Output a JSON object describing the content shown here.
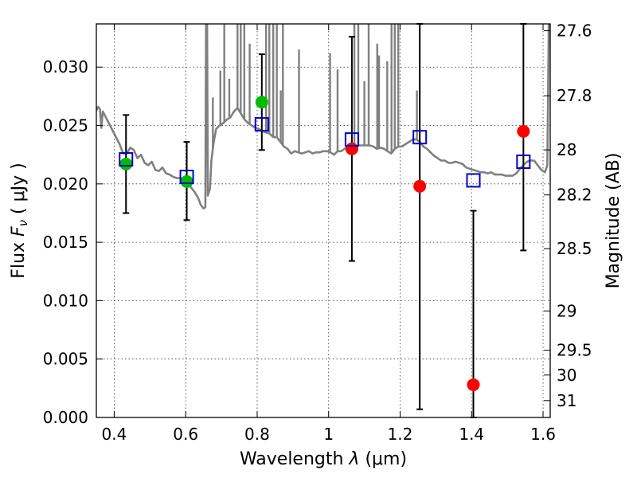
{
  "chart_data": {
    "type": "scatter",
    "title": "",
    "xlabel": {
      "prefix": "Wavelength  ",
      "symbol": "λ",
      "unit": " (μm)"
    },
    "ylabel": {
      "prefix": "Flux  ",
      "symbol": "F",
      "sub": "ν",
      "unit": "  ( μJy )"
    },
    "y2label": "Magnitude (AB)",
    "xlim": [
      0.35,
      1.62
    ],
    "ylim": [
      0.0,
      0.0337
    ],
    "grid": true,
    "x_ticks": [
      {
        "value": 0.4,
        "label": "0.4"
      },
      {
        "value": 0.6,
        "label": "0.6"
      },
      {
        "value": 0.8,
        "label": "0.8"
      },
      {
        "value": 1.0,
        "label": "1"
      },
      {
        "value": 1.2,
        "label": "1.2"
      },
      {
        "value": 1.4,
        "label": "1.4"
      },
      {
        "value": 1.6,
        "label": "1.6"
      }
    ],
    "y_ticks": [
      {
        "value": 0.0,
        "label": "0.000"
      },
      {
        "value": 0.005,
        "label": "0.005"
      },
      {
        "value": 0.01,
        "label": "0.010"
      },
      {
        "value": 0.015,
        "label": "0.015"
      },
      {
        "value": 0.02,
        "label": "0.020"
      },
      {
        "value": 0.025,
        "label": "0.025"
      },
      {
        "value": 0.03,
        "label": "0.030"
      }
    ],
    "y2_ticks": [
      {
        "mag": 27.6,
        "label": "27.6"
      },
      {
        "mag": 27.8,
        "label": "27.8"
      },
      {
        "mag": 28.0,
        "label": "28"
      },
      {
        "mag": 28.2,
        "label": "28.2"
      },
      {
        "mag": 28.5,
        "label": "28.5"
      },
      {
        "mag": 29.0,
        "label": "29"
      },
      {
        "mag": 29.5,
        "label": "29.5"
      },
      {
        "mag": 30.0,
        "label": "30"
      },
      {
        "mag": 31.0,
        "label": "31"
      }
    ],
    "model_spectrum": {
      "color": "#808080",
      "points": [
        [
          0.35,
          0.0263
        ],
        [
          0.355,
          0.0266
        ],
        [
          0.36,
          0.0264
        ],
        [
          0.364,
          0.0248
        ],
        [
          0.368,
          0.0262
        ],
        [
          0.375,
          0.0258
        ],
        [
          0.385,
          0.0252
        ],
        [
          0.395,
          0.0246
        ],
        [
          0.405,
          0.024
        ],
        [
          0.415,
          0.0234
        ],
        [
          0.425,
          0.0226
        ],
        [
          0.435,
          0.0226
        ],
        [
          0.445,
          0.0231
        ],
        [
          0.455,
          0.0229
        ],
        [
          0.465,
          0.0222
        ],
        [
          0.475,
          0.0225
        ],
        [
          0.485,
          0.0218
        ],
        [
          0.495,
          0.0216
        ],
        [
          0.505,
          0.0219
        ],
        [
          0.515,
          0.0212
        ],
        [
          0.525,
          0.0211
        ],
        [
          0.535,
          0.0214
        ],
        [
          0.545,
          0.0209
        ],
        [
          0.555,
          0.0208
        ],
        [
          0.565,
          0.0206
        ],
        [
          0.575,
          0.0205
        ],
        [
          0.585,
          0.0205
        ],
        [
          0.595,
          0.0204
        ],
        [
          0.605,
          0.0201
        ],
        [
          0.615,
          0.0197
        ],
        [
          0.625,
          0.0193
        ],
        [
          0.635,
          0.0188
        ],
        [
          0.642,
          0.0182
        ],
        [
          0.65,
          0.0179
        ],
        [
          0.655,
          0.018
        ],
        [
          0.657,
          0.0337
        ],
        [
          0.66,
          0.0337
        ],
        [
          0.662,
          0.019
        ],
        [
          0.668,
          0.0196
        ],
        [
          0.672,
          0.022
        ],
        [
          0.678,
          0.0235
        ],
        [
          0.685,
          0.0247
        ],
        [
          0.695,
          0.025
        ],
        [
          0.705,
          0.0252
        ],
        [
          0.715,
          0.0255
        ],
        [
          0.725,
          0.0257
        ],
        [
          0.735,
          0.0262
        ],
        [
          0.745,
          0.0265
        ],
        [
          0.755,
          0.026
        ],
        [
          0.765,
          0.0255
        ],
        [
          0.775,
          0.0252
        ],
        [
          0.785,
          0.025
        ],
        [
          0.795,
          0.0248
        ],
        [
          0.805,
          0.0247
        ],
        [
          0.815,
          0.0245
        ],
        [
          0.825,
          0.0244
        ],
        [
          0.835,
          0.0243
        ],
        [
          0.845,
          0.024
        ],
        [
          0.855,
          0.024
        ],
        [
          0.865,
          0.0236
        ],
        [
          0.875,
          0.0232
        ],
        [
          0.885,
          0.023
        ],
        [
          0.895,
          0.0226
        ],
        [
          0.905,
          0.0228
        ],
        [
          0.915,
          0.0227
        ],
        [
          0.925,
          0.0226
        ],
        [
          0.935,
          0.0227
        ],
        [
          0.945,
          0.0228
        ],
        [
          0.955,
          0.0226
        ],
        [
          0.965,
          0.0227
        ],
        [
          0.975,
          0.0227
        ],
        [
          0.985,
          0.0228
        ],
        [
          0.995,
          0.0228
        ],
        [
          1.005,
          0.0227
        ],
        [
          1.015,
          0.0225
        ],
        [
          1.025,
          0.0228
        ],
        [
          1.035,
          0.0228
        ],
        [
          1.045,
          0.023
        ],
        [
          1.055,
          0.0232
        ],
        [
          1.065,
          0.0233
        ],
        [
          1.075,
          0.0232
        ],
        [
          1.085,
          0.0233
        ],
        [
          1.095,
          0.0233
        ],
        [
          1.105,
          0.0233
        ],
        [
          1.115,
          0.0233
        ],
        [
          1.125,
          0.0232
        ],
        [
          1.135,
          0.023
        ],
        [
          1.145,
          0.0231
        ],
        [
          1.155,
          0.023
        ],
        [
          1.165,
          0.0228
        ],
        [
          1.175,
          0.0226
        ],
        [
          1.185,
          0.023
        ],
        [
          1.195,
          0.0232
        ],
        [
          1.205,
          0.0232
        ],
        [
          1.215,
          0.0234
        ],
        [
          1.225,
          0.0236
        ],
        [
          1.235,
          0.0238
        ],
        [
          1.245,
          0.0238
        ],
        [
          1.255,
          0.0236
        ],
        [
          1.265,
          0.0232
        ],
        [
          1.275,
          0.023
        ],
        [
          1.285,
          0.0227
        ],
        [
          1.295,
          0.0224
        ],
        [
          1.305,
          0.0222
        ],
        [
          1.315,
          0.022
        ],
        [
          1.325,
          0.022
        ],
        [
          1.335,
          0.0218
        ],
        [
          1.345,
          0.0218
        ],
        [
          1.355,
          0.0219
        ],
        [
          1.365,
          0.0218
        ],
        [
          1.375,
          0.0217
        ],
        [
          1.385,
          0.0214
        ],
        [
          1.395,
          0.0213
        ],
        [
          1.405,
          0.0212
        ],
        [
          1.415,
          0.0211
        ],
        [
          1.425,
          0.021
        ],
        [
          1.435,
          0.021
        ],
        [
          1.445,
          0.0209
        ],
        [
          1.455,
          0.021
        ],
        [
          1.465,
          0.0208
        ],
        [
          1.475,
          0.0208
        ],
        [
          1.485,
          0.0208
        ],
        [
          1.495,
          0.0207
        ],
        [
          1.505,
          0.0207
        ],
        [
          1.515,
          0.0207
        ],
        [
          1.525,
          0.0209
        ],
        [
          1.535,
          0.0213
        ],
        [
          1.545,
          0.0216
        ],
        [
          1.555,
          0.0219
        ],
        [
          1.565,
          0.022
        ],
        [
          1.575,
          0.022
        ],
        [
          1.585,
          0.0216
        ],
        [
          1.595,
          0.0212
        ],
        [
          1.605,
          0.021
        ],
        [
          1.612,
          0.0216
        ],
        [
          1.616,
          0.0337
        ]
      ],
      "emission_lines": [
        [
          0.676,
          0.0274
        ],
        [
          0.697,
          0.0297
        ],
        [
          0.708,
          0.0337
        ],
        [
          0.722,
          0.029
        ],
        [
          0.745,
          0.0337
        ],
        [
          0.754,
          0.0337
        ],
        [
          0.764,
          0.0337
        ],
        [
          0.779,
          0.032
        ],
        [
          0.825,
          0.0337
        ],
        [
          0.834,
          0.0337
        ],
        [
          0.845,
          0.0337
        ],
        [
          0.855,
          0.0337
        ],
        [
          0.866,
          0.028
        ],
        [
          0.872,
          0.0337
        ],
        [
          0.917,
          0.0315
        ],
        [
          1.004,
          0.0312
        ],
        [
          1.025,
          0.0298
        ],
        [
          1.072,
          0.0337
        ],
        [
          1.083,
          0.0337
        ],
        [
          1.1,
          0.0288
        ],
        [
          1.112,
          0.0337
        ],
        [
          1.136,
          0.032
        ],
        [
          1.141,
          0.031
        ],
        [
          1.164,
          0.0305
        ],
        [
          1.176,
          0.0337
        ],
        [
          1.185,
          0.0337
        ],
        [
          1.195,
          0.0337
        ],
        [
          1.247,
          0.028
        ]
      ]
    },
    "observed": {
      "colors": {
        "green": "#00bb00",
        "red": "#ff0000"
      },
      "points": [
        {
          "x": 0.433,
          "y": 0.0217,
          "color": "green"
        },
        {
          "x": 0.603,
          "y": 0.0202,
          "color": "green"
        },
        {
          "x": 0.813,
          "y": 0.027,
          "color": "green"
        },
        {
          "x": 1.065,
          "y": 0.023,
          "color": "red"
        },
        {
          "x": 1.255,
          "y": 0.0198,
          "color": "red"
        },
        {
          "x": 1.405,
          "y": 0.0028,
          "color": "red"
        },
        {
          "x": 1.545,
          "y": 0.0245,
          "color": "red"
        }
      ]
    },
    "model_photometry": {
      "color": "#0000cc",
      "points": [
        {
          "x": 0.433,
          "y": 0.0221
        },
        {
          "x": 0.603,
          "y": 0.0206
        },
        {
          "x": 0.813,
          "y": 0.0251
        },
        {
          "x": 1.065,
          "y": 0.0238
        },
        {
          "x": 1.255,
          "y": 0.024
        },
        {
          "x": 1.405,
          "y": 0.0203
        },
        {
          "x": 1.545,
          "y": 0.0219
        }
      ]
    },
    "error_bars": [
      {
        "x": 0.433,
        "low": 0.0175,
        "high": 0.0259
      },
      {
        "x": 0.603,
        "low": 0.0169,
        "high": 0.0236
      },
      {
        "x": 0.813,
        "low": 0.0229,
        "high": 0.0311
      },
      {
        "x": 1.065,
        "low": 0.0134,
        "high": 0.0326
      },
      {
        "x": 1.255,
        "low": 0.0007,
        "high": 0.0337
      },
      {
        "x": 1.405,
        "low": 0.0,
        "high": 0.0177
      },
      {
        "x": 1.545,
        "low": 0.0143,
        "high": 0.0337
      }
    ]
  }
}
